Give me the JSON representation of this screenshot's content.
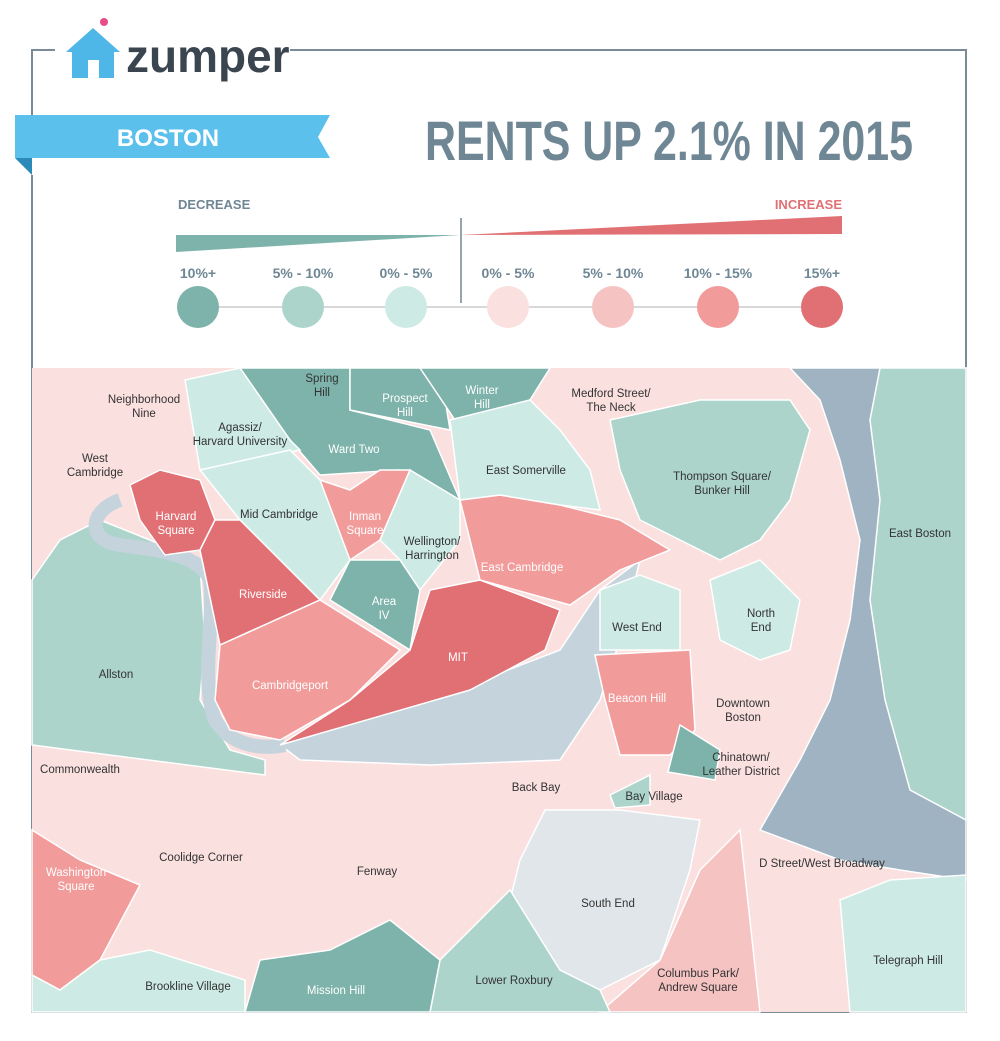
{
  "header": {
    "logo": "zumper",
    "city": "BOSTON",
    "title": "RENTS UP 2.1% IN 2015"
  },
  "legend": {
    "decrease": "DECREASE",
    "increase": "INCREASE",
    "items": [
      {
        "label": "10%+",
        "color": "#7db3aa"
      },
      {
        "label": "5% - 10%",
        "color": "#acd4cb"
      },
      {
        "label": "0% - 5%",
        "color": "#cdeae4"
      },
      {
        "label": "0% - 5%",
        "color": "#fae0df"
      },
      {
        "label": "5% - 10%",
        "color": "#f5c3c2"
      },
      {
        "label": "10% - 15%",
        "color": "#f29b9b"
      },
      {
        "label": "15%+",
        "color": "#e07073"
      }
    ]
  },
  "neighborhoods": [
    [
      "Spring",
      "Hill"
    ],
    [
      "Neighborhood",
      "Nine"
    ],
    [
      "Prospect",
      "Hill"
    ],
    [
      "Winter",
      "Hill"
    ],
    [
      "Medford Street/",
      "The Neck"
    ],
    [
      "Agassiz/",
      "Harvard University"
    ],
    [
      "Ward Two"
    ],
    [
      "West",
      "Cambridge"
    ],
    [
      "East Somerville"
    ],
    [
      "Thompson Square/",
      "Bunker Hill"
    ],
    [
      "Harvard",
      "Square"
    ],
    [
      "Mid Cambridge"
    ],
    [
      "Inman",
      "Square"
    ],
    [
      "Wellington/",
      "Harrington"
    ],
    [
      "East Boston"
    ],
    [
      "East Cambridge"
    ],
    [
      "Riverside"
    ],
    [
      "Area",
      "IV"
    ],
    [
      "North",
      "End"
    ],
    [
      "West End"
    ],
    [
      "MIT"
    ],
    [
      "Allston"
    ],
    [
      "Cambridgeport"
    ],
    [
      "Beacon Hill"
    ],
    [
      "Downtown",
      "Boston"
    ],
    [
      "Chinatown/",
      "Leather District"
    ],
    [
      "Commonwealth"
    ],
    [
      "Back Bay"
    ],
    [
      "Bay Village"
    ],
    [
      "Coolidge Corner"
    ],
    [
      "D Street/West Broadway"
    ],
    [
      "Fenway"
    ],
    [
      "Washington",
      "Square"
    ],
    [
      "South End"
    ],
    [
      "Telegraph Hill"
    ],
    [
      "Columbus Park/",
      "Andrew Square"
    ],
    [
      "Lower Roxbury"
    ],
    [
      "Brookline Village"
    ],
    [
      "Mission Hill"
    ]
  ]
}
